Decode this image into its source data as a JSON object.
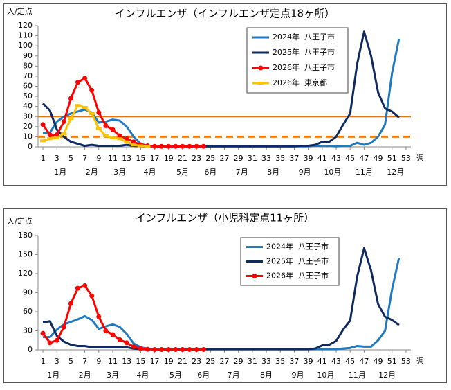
{
  "chart_data": [
    {
      "type": "line",
      "title": "インフルエンザ（インフルエンザ定点18ヶ所）",
      "y_label": "人/定点",
      "x_label": "週",
      "xlim": [
        0.3,
        53.7
      ],
      "ylim": [
        0,
        120
      ],
      "xticks": [
        1,
        3,
        5,
        7,
        9,
        11,
        13,
        15,
        17,
        19,
        21,
        23,
        25,
        27,
        29,
        31,
        33,
        35,
        37,
        39,
        41,
        43,
        45,
        47,
        49,
        51,
        53
      ],
      "yticks": [
        0,
        10,
        20,
        30,
        40,
        50,
        60,
        70,
        80,
        90,
        100,
        110,
        120
      ],
      "month_labels": [
        {
          "label": "1月",
          "x": 3.5
        },
        {
          "label": "2月",
          "x": 8
        },
        {
          "label": "3月",
          "x": 12
        },
        {
          "label": "4月",
          "x": 16.3
        },
        {
          "label": "5月",
          "x": 21
        },
        {
          "label": "6月",
          "x": 25
        },
        {
          "label": "7月",
          "x": 29.5
        },
        {
          "label": "8月",
          "x": 34
        },
        {
          "label": "9月",
          "x": 38.5
        },
        {
          "label": "10月",
          "x": 42.5
        },
        {
          "label": "11月",
          "x": 47
        },
        {
          "label": "12月",
          "x": 51.5
        }
      ],
      "reference_lines": [
        {
          "value": 30,
          "color": "#e8720c",
          "style": "solid"
        },
        {
          "value": 10,
          "color": "#f07f14",
          "style": "dashed"
        }
      ],
      "x": [
        1,
        2,
        3,
        4,
        5,
        6,
        7,
        8,
        9,
        10,
        11,
        12,
        13,
        14,
        15,
        16,
        17,
        18,
        19,
        20,
        21,
        22,
        23,
        24,
        25,
        26,
        27,
        28,
        29,
        30,
        31,
        32,
        33,
        34,
        35,
        36,
        37,
        38,
        39,
        40,
        41,
        42,
        43,
        44,
        45,
        46,
        47,
        48,
        49,
        50,
        51,
        52
      ],
      "series": [
        {
          "name": "2024年  八王子市",
          "color": "#1f7ac0",
          "marker": "none",
          "values": [
            14,
            14,
            25,
            30,
            33,
            35,
            37,
            34,
            24,
            25,
            27,
            26,
            20,
            10,
            3,
            1,
            0.5,
            0.5,
            0.5,
            0.5,
            0.5,
            0.5,
            0.5,
            0.5,
            0.5,
            0.5,
            0.5,
            0.5,
            0.5,
            0.5,
            0.5,
            0.5,
            0.5,
            0.5,
            0.5,
            0.5,
            0.5,
            0.5,
            0.5,
            1,
            1,
            1,
            0.5,
            1,
            1,
            4,
            2,
            4,
            10,
            22,
            73,
            107
          ]
        },
        {
          "name": "2025年  八王子市",
          "color": "#0f2a5e",
          "marker": "none",
          "values": [
            43,
            36,
            17,
            10,
            5,
            3,
            1,
            2,
            1,
            1,
            1,
            1,
            2,
            1,
            0.5,
            0.5,
            0.5,
            0.5,
            0.5,
            0.5,
            0.5,
            0.5,
            0.5,
            0.5,
            0.5,
            0.5,
            0.5,
            0.5,
            0.5,
            0.5,
            0.5,
            0.5,
            0.5,
            0.5,
            0.5,
            0.5,
            0.5,
            1,
            1,
            2,
            5,
            5,
            10,
            22,
            33,
            82,
            114,
            90,
            54,
            38,
            35,
            29
          ]
        },
        {
          "name": "2026年  八王子市",
          "color": "#ff0000",
          "marker": "circle",
          "values": [
            22,
            12,
            12,
            25,
            48,
            64,
            68,
            56,
            34,
            21,
            17,
            11,
            8,
            5,
            2,
            1,
            0.5,
            0.5,
            0.5,
            0.5,
            0.5,
            0.5,
            0.5,
            0.5,
            null,
            null,
            null,
            null,
            null,
            null,
            null,
            null,
            null,
            null,
            null,
            null,
            null,
            null,
            null,
            null,
            null,
            null,
            null,
            null,
            null,
            null,
            null,
            null,
            null,
            null,
            null,
            null
          ]
        },
        {
          "name": "2026年  東京都",
          "color": "#ffc000",
          "marker": "square",
          "values": [
            6,
            8,
            9,
            13,
            28,
            41,
            39,
            33,
            18,
            11,
            9,
            8,
            5,
            2,
            1,
            0.5,
            null,
            null,
            null,
            null,
            null,
            null,
            null,
            null,
            null,
            null,
            null,
            null,
            null,
            null,
            null,
            null,
            null,
            null,
            null,
            null,
            null,
            null,
            null,
            null,
            null,
            null,
            null,
            null,
            null,
            null,
            null,
            null,
            null,
            null,
            null,
            null
          ]
        }
      ]
    },
    {
      "type": "line",
      "title": "インフルエンザ（小児科定点11ヶ所）",
      "y_label": "人/定点",
      "x_label": "週",
      "xlim": [
        0.3,
        53.7
      ],
      "ylim": [
        0,
        180
      ],
      "xticks": [
        1,
        3,
        5,
        7,
        9,
        11,
        13,
        15,
        17,
        19,
        21,
        23,
        25,
        27,
        29,
        31,
        33,
        35,
        37,
        39,
        41,
        43,
        45,
        47,
        49,
        51,
        53
      ],
      "yticks": [
        0,
        30,
        60,
        90,
        120,
        150,
        180
      ],
      "month_labels": [
        {
          "label": "1月",
          "x": 2.5
        },
        {
          "label": "2月",
          "x": 7
        },
        {
          "label": "3月",
          "x": 11
        },
        {
          "label": "4月",
          "x": 15.3
        },
        {
          "label": "5月",
          "x": 20
        },
        {
          "label": "6月",
          "x": 24
        },
        {
          "label": "7月",
          "x": 28.3
        },
        {
          "label": "8月",
          "x": 33
        },
        {
          "label": "9月",
          "x": 37.5
        },
        {
          "label": "10月",
          "x": 41.5
        },
        {
          "label": "11月",
          "x": 46
        },
        {
          "label": "12月",
          "x": 50.3
        }
      ],
      "x": [
        1,
        2,
        3,
        4,
        5,
        6,
        7,
        8,
        9,
        10,
        11,
        12,
        13,
        14,
        15,
        16,
        17,
        18,
        19,
        20,
        21,
        22,
        23,
        24,
        25,
        26,
        27,
        28,
        29,
        30,
        31,
        32,
        33,
        34,
        35,
        36,
        37,
        38,
        39,
        40,
        41,
        42,
        43,
        44,
        45,
        46,
        47,
        48,
        49,
        50,
        51,
        52
      ],
      "series": [
        {
          "name": "2024年  八王子市",
          "color": "#1f7ac0",
          "marker": "none",
          "values": [
            20,
            20,
            32,
            40,
            44,
            48,
            53,
            47,
            33,
            37,
            40,
            36,
            25,
            10,
            4,
            2,
            1,
            1,
            1,
            1,
            1,
            1,
            1,
            1,
            1,
            1,
            1,
            1,
            1,
            1,
            1,
            1,
            1,
            1,
            1,
            1,
            1,
            1,
            1,
            1,
            1,
            1,
            1,
            2,
            3,
            6,
            5,
            5,
            15,
            30,
            95,
            145
          ]
        },
        {
          "name": "2025年  八王子市",
          "color": "#0f2a5e",
          "marker": "none",
          "values": [
            43,
            45,
            22,
            13,
            8,
            6,
            6,
            4,
            4,
            4,
            4,
            4,
            4,
            2,
            1,
            1,
            1,
            1,
            1,
            1,
            1,
            1,
            1,
            1,
            1,
            1,
            1,
            1,
            1,
            1,
            1,
            1,
            1,
            1,
            1,
            1,
            1,
            1,
            1,
            2,
            7,
            8,
            14,
            32,
            46,
            115,
            160,
            125,
            72,
            52,
            47,
            39
          ]
        },
        {
          "name": "2026年  八王子市",
          "color": "#ff0000",
          "marker": "circle",
          "values": [
            26,
            11,
            15,
            36,
            73,
            97,
            101,
            85,
            52,
            30,
            24,
            16,
            11,
            5,
            2,
            1,
            0.5,
            0.5,
            0.5,
            0.5,
            0.5,
            0.5,
            0.5,
            0.5,
            null,
            null,
            null,
            null,
            null,
            null,
            null,
            null,
            null,
            null,
            null,
            null,
            null,
            null,
            null,
            null,
            null,
            null,
            null,
            null,
            null,
            null,
            null,
            null,
            null,
            null,
            null,
            null
          ]
        }
      ]
    }
  ]
}
